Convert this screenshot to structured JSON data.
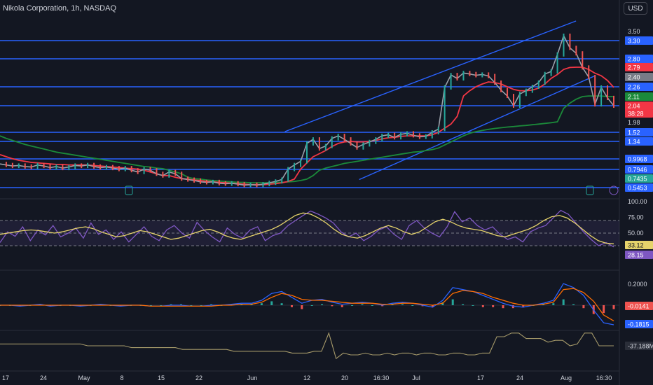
{
  "header": {
    "title": "Nikola Corporation, 1h, NASDAQ",
    "currency_button": "USD"
  },
  "colors": {
    "background": "#131722",
    "level_line": "#2962ff",
    "price_line": "#9aa0aa",
    "ema_fast": "#f23645",
    "ema_slow": "#1b8a3a",
    "rsi_line": "#7e57c2",
    "rsi_ma": "#e6d36b",
    "macd_line": "#2962ff",
    "signal_line": "#ff6d00",
    "hist_up": "#26a69a",
    "hist_down": "#ef5350",
    "obv_line": "#a69a6a"
  },
  "chart_data": [
    {
      "type": "line",
      "panel": "price",
      "x_tick_labels": [
        "17",
        "24",
        "May",
        "8",
        "15",
        "22",
        "Jun",
        "12",
        "20",
        "16:30",
        "Jul",
        "17",
        "24",
        "Aug",
        "16:30"
      ],
      "y_tick_labels": [
        "3.50",
        "1.98"
      ],
      "price_scale_labels": [
        {
          "text": "3.30",
          "color": "#2962ff"
        },
        {
          "text": "2.80",
          "color": "#2962ff"
        },
        {
          "text": "2.79",
          "color": "#f23645"
        },
        {
          "text": "2.40",
          "color": "#787b86"
        },
        {
          "text": "2.26",
          "color": "#2962ff"
        },
        {
          "text": "2.11",
          "color": "#1b8a3a"
        },
        {
          "text": "2.04",
          "color": "#f23645"
        },
        {
          "text": "38:28",
          "color": "#f23645"
        },
        {
          "text": "1.52",
          "color": "#2962ff"
        },
        {
          "text": "1.34",
          "color": "#2962ff"
        },
        {
          "text": "0.9968",
          "color": "#2962ff"
        },
        {
          "text": "0.7946",
          "color": "#2962ff"
        },
        {
          "text": "0.7435",
          "color": "#26a69a"
        },
        {
          "text": "0.5453",
          "color": "#2962ff"
        }
      ],
      "horizontal_levels": [
        3.3,
        2.8,
        2.26,
        2.04,
        1.52,
        1.34,
        0.9968,
        0.7946,
        0.5453
      ],
      "channel": {
        "upper": [
          [
            0.46,
            1.55
          ],
          [
            0.93,
            3.7
          ]
        ],
        "lower": [
          [
            0.58,
            0.72
          ],
          [
            0.96,
            2.44
          ]
        ]
      },
      "series": [
        {
          "role": "price",
          "values": [
            0.9,
            0.88,
            0.86,
            0.87,
            0.85,
            0.84,
            0.88,
            0.86,
            0.83,
            0.85,
            0.82,
            0.84,
            0.87,
            0.86,
            0.88,
            0.85,
            0.83,
            0.84,
            0.82,
            0.8,
            0.82,
            0.79,
            0.78,
            0.8,
            0.79,
            0.77,
            0.76,
            0.78,
            0.77,
            0.74,
            0.72,
            0.7,
            0.67,
            0.66,
            0.67,
            0.64,
            0.63,
            0.64,
            0.62,
            0.6,
            0.61,
            0.6,
            0.62,
            0.65,
            0.68,
            0.72,
            0.8,
            0.88,
            0.95,
            1.3,
            1.38,
            1.2,
            1.25,
            1.4,
            1.45,
            1.38,
            1.3,
            1.22,
            1.28,
            1.33,
            1.38,
            1.45,
            1.47,
            1.42,
            1.48,
            1.5,
            1.46,
            1.43,
            1.44,
            1.52,
            1.66,
            2.25,
            2.48,
            2.38,
            2.56,
            2.52,
            2.47,
            2.5,
            2.44,
            2.32,
            2.21,
            2.12,
            2.04,
            2.15,
            2.2,
            2.26,
            2.32,
            2.52,
            2.62,
            2.92,
            3.4,
            3.1,
            2.95,
            2.78,
            2.4,
            2.05,
            2.25,
            2.1,
            2.04
          ]
        },
        {
          "role": "ema_fast",
          "values": [
            1.08,
            1.04,
            1.0,
            0.97,
            0.95,
            0.93,
            0.92,
            0.91,
            0.9,
            0.89,
            0.89,
            0.88,
            0.88,
            0.88,
            0.88,
            0.87,
            0.86,
            0.85,
            0.84,
            0.83,
            0.82,
            0.81,
            0.8,
            0.79,
            0.78,
            0.77,
            0.76,
            0.76,
            0.75,
            0.74,
            0.73,
            0.71,
            0.7,
            0.68,
            0.67,
            0.66,
            0.65,
            0.64,
            0.63,
            0.62,
            0.61,
            0.61,
            0.61,
            0.62,
            0.63,
            0.65,
            0.68,
            0.73,
            0.8,
            0.92,
            1.04,
            1.1,
            1.16,
            1.24,
            1.3,
            1.33,
            1.34,
            1.33,
            1.33,
            1.34,
            1.36,
            1.39,
            1.41,
            1.42,
            1.44,
            1.45,
            1.45,
            1.45,
            1.45,
            1.47,
            1.52,
            1.7,
            1.88,
            2.0,
            2.12,
            2.2,
            2.26,
            2.3,
            2.33,
            2.32,
            2.3,
            2.26,
            2.22,
            2.2,
            2.2,
            2.21,
            2.24,
            2.3,
            2.38,
            2.5,
            2.7,
            2.78,
            2.79,
            2.79,
            2.7,
            2.55,
            2.45,
            2.35,
            2.25
          ]
        },
        {
          "role": "ema_slow",
          "values": [
            1.45,
            1.4,
            1.36,
            1.32,
            1.28,
            1.25,
            1.22,
            1.19,
            1.16,
            1.13,
            1.11,
            1.09,
            1.07,
            1.05,
            1.03,
            1.01,
            0.99,
            0.97,
            0.95,
            0.93,
            0.91,
            0.89,
            0.87,
            0.85,
            0.84,
            0.82,
            0.81,
            0.79,
            0.78,
            0.77,
            0.75,
            0.74,
            0.73,
            0.71,
            0.7,
            0.69,
            0.68,
            0.67,
            0.66,
            0.66,
            0.65,
            0.65,
            0.65,
            0.65,
            0.66,
            0.66,
            0.67,
            0.68,
            0.7,
            0.73,
            0.76,
            0.79,
            0.82,
            0.85,
            0.88,
            0.91,
            0.93,
            0.95,
            0.97,
            0.99,
            1.01,
            1.03,
            1.05,
            1.07,
            1.09,
            1.11,
            1.13,
            1.14,
            1.16,
            1.18,
            1.21,
            1.27,
            1.33,
            1.39,
            1.45,
            1.5,
            1.55,
            1.6,
            1.65,
            1.69,
            1.72,
            1.75,
            1.77,
            1.8,
            1.82,
            1.85,
            1.88,
            1.91,
            1.94,
            1.98,
            2.03,
            2.06,
            2.09,
            2.11,
            2.12,
            2.12,
            2.12,
            2.11,
            2.11
          ]
        }
      ]
    },
    {
      "type": "line",
      "panel": "rsi",
      "ylim": [
        0,
        100
      ],
      "y_tick_labels": [
        "100.00",
        "75.00",
        "50.00"
      ],
      "value_labels": [
        {
          "text": "33.12",
          "color": "#e6d36b"
        },
        {
          "text": "28.15",
          "color": "#7e57c2"
        }
      ],
      "bands": [
        70,
        50,
        30
      ],
      "series": [
        {
          "role": "rsi",
          "values": [
            35,
            52,
            45,
            60,
            38,
            55,
            47,
            62,
            44,
            50,
            58,
            42,
            66,
            48,
            55,
            40,
            52,
            36,
            48,
            60,
            45,
            38,
            55,
            62,
            50,
            42,
            67,
            54,
            44,
            36,
            58,
            48,
            42,
            55,
            60,
            38,
            46,
            50,
            62,
            70,
            78,
            85,
            80,
            74,
            66,
            52,
            44,
            50,
            38,
            45,
            55,
            60,
            48,
            40,
            62,
            70,
            58,
            50,
            44,
            60,
            84,
            68,
            74,
            62,
            55,
            60,
            48,
            40,
            44,
            36,
            52,
            58,
            62,
            74,
            86,
            80,
            66,
            52,
            40,
            30,
            35,
            28
          ]
        },
        {
          "role": "rsi_ma",
          "values": [
            48,
            50,
            52,
            54,
            55,
            54,
            52,
            50,
            52,
            55,
            58,
            60,
            57,
            52,
            48,
            44,
            46,
            50,
            54,
            52,
            48,
            44,
            40,
            42,
            46,
            50,
            54,
            56,
            52,
            46,
            42,
            40,
            44,
            48,
            52,
            56,
            62,
            70,
            78,
            82,
            80,
            74,
            66,
            56,
            48,
            44,
            42,
            46,
            52,
            58,
            62,
            58,
            52,
            48,
            52,
            60,
            68,
            72,
            68,
            62,
            58,
            56,
            54,
            50,
            46,
            44,
            48,
            52,
            56,
            62,
            70,
            76,
            78,
            74,
            66,
            56,
            46,
            38,
            34,
            33
          ]
        }
      ]
    },
    {
      "type": "line",
      "panel": "macd",
      "y_tick_labels": [
        "0.2000"
      ],
      "value_labels": [
        {
          "text": "-0.0141",
          "color": "#ef5350"
        },
        {
          "text": "-0.1815",
          "color": "#2962ff"
        }
      ],
      "series": [
        {
          "role": "macd",
          "values": [
            0.0,
            0.0,
            -0.01,
            0.0,
            0.01,
            -0.01,
            0.0,
            0.0,
            -0.01,
            0.0,
            0.01,
            0.0,
            -0.01,
            0.0,
            0.0,
            -0.01,
            -0.01,
            0.0,
            0.0,
            -0.01,
            -0.01,
            0.0,
            0.0,
            0.01,
            0.02,
            0.02,
            0.05,
            0.12,
            0.14,
            0.08,
            0.02,
            0.05,
            0.06,
            0.03,
            0.01,
            0.02,
            0.03,
            0.02,
            0.0,
            0.02,
            0.03,
            0.02,
            0.0,
            -0.02,
            0.05,
            0.18,
            0.16,
            0.14,
            0.1,
            0.06,
            0.02,
            -0.01,
            -0.02,
            0.0,
            0.02,
            0.05,
            0.22,
            0.18,
            0.1,
            -0.05,
            -0.18,
            -0.2
          ]
        },
        {
          "role": "signal",
          "values": [
            0.0,
            0.0,
            0.0,
            0.0,
            0.0,
            0.0,
            0.0,
            0.0,
            0.0,
            0.0,
            0.0,
            0.0,
            0.0,
            0.0,
            0.0,
            -0.01,
            -0.01,
            -0.01,
            -0.01,
            -0.01,
            -0.01,
            -0.01,
            0.0,
            0.0,
            0.01,
            0.01,
            0.03,
            0.08,
            0.12,
            0.1,
            0.06,
            0.05,
            0.05,
            0.04,
            0.03,
            0.02,
            0.02,
            0.02,
            0.01,
            0.01,
            0.02,
            0.02,
            0.01,
            0.0,
            0.02,
            0.12,
            0.15,
            0.14,
            0.12,
            0.08,
            0.05,
            0.02,
            0.0,
            0.0,
            0.01,
            0.03,
            0.16,
            0.17,
            0.13,
            0.04,
            -0.1,
            -0.16
          ]
        },
        {
          "role": "histogram",
          "values": [
            0.0,
            0.0,
            -0.01,
            0.0,
            0.01,
            -0.01,
            0.0,
            0.0,
            -0.01,
            0.0,
            0.01,
            0.0,
            -0.01,
            0.0,
            0.0,
            0.0,
            0.0,
            0.01,
            0.01,
            0.0,
            0.0,
            0.01,
            0.0,
            0.01,
            0.01,
            0.01,
            0.02,
            0.04,
            0.02,
            -0.02,
            -0.04,
            0.0,
            0.01,
            -0.01,
            -0.02,
            0.0,
            0.01,
            0.0,
            -0.01,
            0.01,
            0.01,
            0.0,
            -0.01,
            -0.02,
            0.03,
            0.06,
            0.01,
            0.0,
            -0.02,
            -0.02,
            -0.03,
            -0.03,
            -0.02,
            0.0,
            0.01,
            0.02,
            0.06,
            0.01,
            -0.03,
            -0.09,
            -0.08,
            -0.04
          ]
        }
      ]
    },
    {
      "type": "line",
      "panel": "volume_indicator",
      "value_labels": [
        {
          "text": "-37.188M",
          "color": "#a69a6a"
        }
      ],
      "series": [
        {
          "role": "obv",
          "values": [
            -36,
            -36,
            -36,
            -36,
            -36,
            -36,
            -36,
            -36,
            -36,
            -36,
            -36,
            -36,
            -37,
            -37,
            -37,
            -37,
            -37,
            -37,
            -38,
            -38,
            -38,
            -38,
            -38,
            -38,
            -38,
            -39,
            -39,
            -39,
            -39,
            -39,
            -39,
            -39,
            -40,
            -40,
            -40,
            -40,
            -40,
            -40,
            -40,
            -40,
            -41,
            -41,
            -41,
            -40,
            -40,
            -30,
            -44,
            -41,
            -42,
            -42,
            -41,
            -42,
            -42,
            -41,
            -42,
            -41,
            -41,
            -42,
            -41,
            -41,
            -42,
            -42,
            -41,
            -41,
            -42,
            -42,
            -41,
            -41,
            -32,
            -32,
            -30,
            -30,
            -33,
            -33,
            -33,
            -35,
            -34,
            -34,
            -37,
            -36,
            -30,
            -30,
            -37,
            -37,
            -37
          ]
        }
      ]
    }
  ]
}
